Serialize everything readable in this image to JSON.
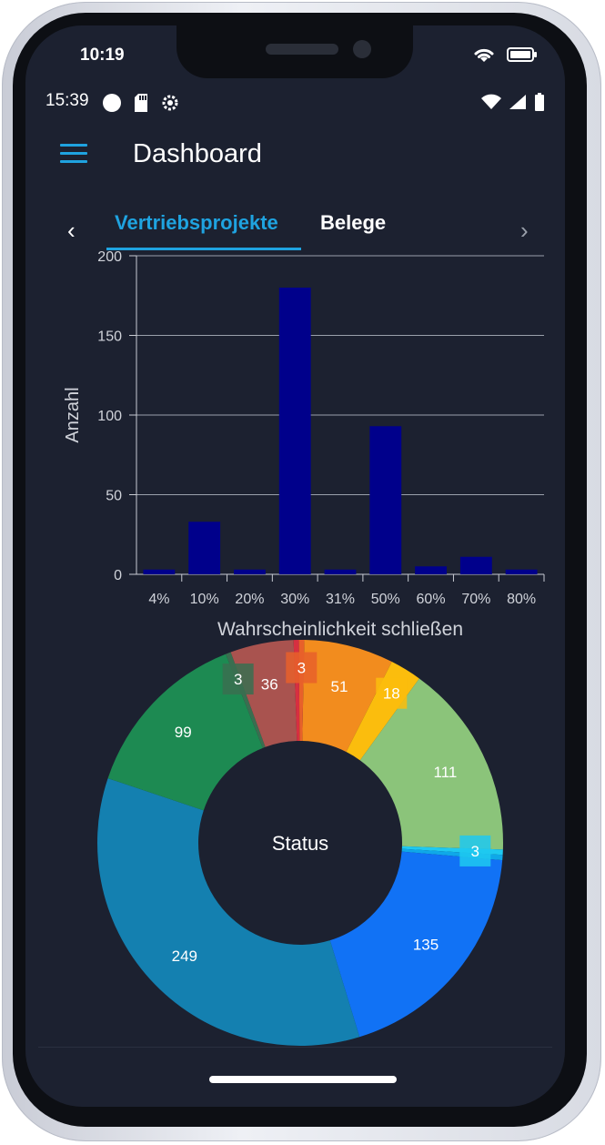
{
  "device": {
    "outer_time": "10:19",
    "outer_icons": [
      "wifi-icon",
      "battery-icon"
    ]
  },
  "status_bar": {
    "time": "15:39",
    "left_icons": [
      "circle-notification-icon",
      "sd-card-icon",
      "settings-gear-icon"
    ],
    "right_icons": [
      "wifi-icon",
      "signal-icon",
      "battery-icon"
    ]
  },
  "app_bar": {
    "menu_icon": "hamburger-menu-icon",
    "title": "Dashboard"
  },
  "tabs": {
    "left_arrow": "‹",
    "right_arrow": "›",
    "items": [
      {
        "label": "Vertriebsprojekte",
        "active": true
      },
      {
        "label": "Belege",
        "active": false
      }
    ]
  },
  "colors": {
    "background": "#1c2130",
    "accent": "#1fa3e0",
    "bar": "#00008b",
    "grid": "#9aa0ab",
    "axis_text": "#d0d3da"
  },
  "chart_data": [
    {
      "type": "bar",
      "categories": [
        "4%",
        "10%",
        "20%",
        "30%",
        "31%",
        "50%",
        "60%",
        "70%",
        "80%"
      ],
      "values": [
        3,
        33,
        3,
        180,
        3,
        93,
        5,
        11,
        3
      ],
      "ylim": [
        0,
        200
      ],
      "yticks": [
        0,
        50,
        100,
        150,
        200
      ],
      "ylabel": "Anzahl",
      "xlabel": "Wahrscheinlichkeit schließen",
      "grid": true
    },
    {
      "type": "pie",
      "donut": true,
      "center_label": "Status",
      "slices": [
        {
          "value": 51,
          "color": "#f28c1e"
        },
        {
          "value": 18,
          "color": "#fbbd0d"
        },
        {
          "value": 111,
          "color": "#8bc47a"
        },
        {
          "value": 3,
          "color": "#1fc9f0"
        },
        {
          "value": 3,
          "color": "#0fa8e8"
        },
        {
          "value": 135,
          "color": "#1172f5"
        },
        {
          "value": 249,
          "color": "#1480b0"
        },
        {
          "value": 99,
          "color": "#1d8a52"
        },
        {
          "value": 3,
          "color": "#3a6e50"
        },
        {
          "value": 36,
          "color": "#a9534f"
        },
        {
          "value": 3,
          "color": "#d72f40"
        },
        {
          "value": 3,
          "color": "#e8602a"
        }
      ],
      "labels": [
        {
          "text": "51",
          "slice": 0
        },
        {
          "text": "18",
          "slice": 1,
          "boxed": true
        },
        {
          "text": "111",
          "slice": 2
        },
        {
          "text": "3",
          "slice": 3,
          "boxed": true
        },
        {
          "text": "135",
          "slice": 5
        },
        {
          "text": "249",
          "slice": 6
        },
        {
          "text": "99",
          "slice": 7
        },
        {
          "text": "3",
          "slice": 8,
          "boxed": true
        },
        {
          "text": "36",
          "slice": 9
        },
        {
          "text": "3",
          "slice": 11,
          "boxed": true
        }
      ]
    }
  ]
}
